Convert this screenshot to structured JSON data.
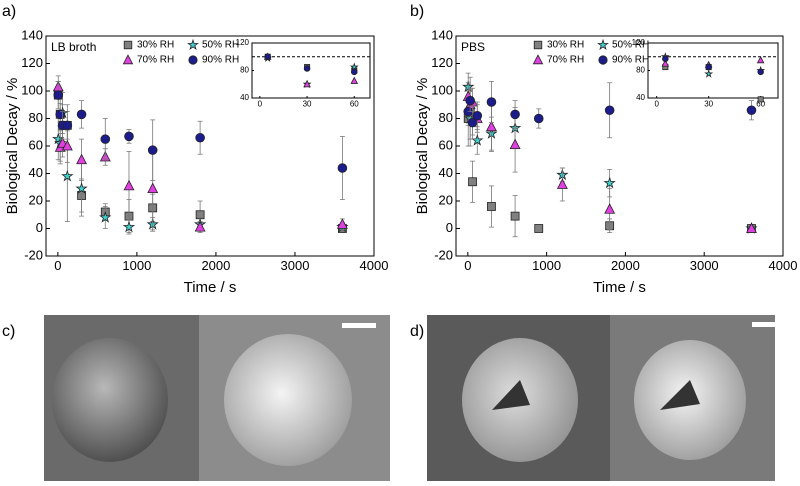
{
  "chart_data": [
    {
      "type": "scatter",
      "panel_label": "a)",
      "annotation": "LB broth",
      "xlabel": "Time / s",
      "ylabel": "Biological Decay / %",
      "xlim": [
        -150,
        4000
      ],
      "ylim": [
        -20,
        140
      ],
      "xticks": [
        0,
        1000,
        2000,
        3000,
        4000
      ],
      "yticks": [
        -20,
        0,
        20,
        40,
        60,
        80,
        100,
        120,
        140
      ],
      "x": [
        5,
        30,
        60,
        120,
        300,
        600,
        900,
        1200,
        1800,
        3600
      ],
      "series": [
        {
          "name": "30% RH",
          "color": "#808080",
          "marker": "square",
          "values": [
            97,
            83,
            75,
            75,
            24,
            12,
            9,
            15,
            10,
            0
          ],
          "errors": [
            10,
            12,
            15,
            15,
            12,
            6,
            12,
            10,
            10,
            2
          ]
        },
        {
          "name": "50% RH",
          "color": "#40d0d0",
          "marker": "star",
          "values": [
            65,
            62,
            84,
            38,
            29,
            8,
            1,
            3,
            3,
            1
          ],
          "errors": [
            15,
            15,
            15,
            33,
            20,
            8,
            5,
            5,
            5,
            3
          ]
        },
        {
          "name": "70% RH",
          "color": "#e040e0",
          "marker": "triangle",
          "values": [
            103,
            59,
            62,
            60,
            50,
            52,
            31,
            29,
            1,
            3
          ],
          "errors": [
            8,
            10,
            10,
            12,
            15,
            6,
            25,
            30,
            4,
            4
          ]
        },
        {
          "name": "90% RH",
          "color": "#1c1c8a",
          "marker": "circle",
          "values": [
            97,
            83,
            75,
            75,
            83,
            65,
            67,
            57,
            66,
            44
          ],
          "errors": [
            10,
            8,
            10,
            10,
            10,
            15,
            5,
            22,
            12,
            23
          ]
        }
      ]
    },
    {
      "type": "scatter",
      "xlim": [
        -5,
        70
      ],
      "ylim": [
        40,
        120
      ],
      "xticks": [
        0,
        30,
        60
      ],
      "yticks": [
        40,
        80,
        120
      ],
      "ref_line": 100,
      "x": [
        5,
        30,
        60
      ],
      "series": [
        {
          "name": "30% RH",
          "color": "#808080",
          "marker": "square",
          "values": [
            100,
            85,
            80
          ]
        },
        {
          "name": "50% RH",
          "color": "#40d0d0",
          "marker": "star",
          "values": [
            98,
            60,
            85
          ]
        },
        {
          "name": "70% RH",
          "color": "#e040e0",
          "marker": "triangle",
          "values": [
            100,
            60,
            65
          ]
        },
        {
          "name": "90% RH",
          "color": "#1c1c8a",
          "marker": "circle",
          "values": [
            100,
            83,
            78
          ]
        }
      ]
    },
    {
      "type": "scatter",
      "panel_label": "b)",
      "annotation": "PBS",
      "xlabel": "Time / s",
      "ylabel": "Biological Decay / %",
      "xlim": [
        -150,
        4000
      ],
      "ylim": [
        -20,
        140
      ],
      "xticks": [
        0,
        1000,
        2000,
        3000,
        4000
      ],
      "yticks": [
        -20,
        0,
        20,
        40,
        60,
        80,
        100,
        120,
        140
      ],
      "x": [
        5,
        30,
        60,
        120,
        300,
        600,
        900,
        1200,
        1800,
        3600
      ],
      "series": [
        {
          "name": "30% RH",
          "color": "#808080",
          "marker": "square",
          "values": [
            80,
            85,
            34,
            null,
            16,
            9,
            0,
            null,
            2,
            0
          ],
          "errors": [
            20,
            25,
            15,
            null,
            15,
            15,
            1,
            null,
            5,
            1
          ]
        },
        {
          "name": "50% RH",
          "color": "#40d0d0",
          "marker": "star",
          "values": [
            103,
            80,
            78,
            64,
            69,
            73,
            null,
            39,
            33,
            0
          ],
          "errors": [
            10,
            15,
            10,
            10,
            12,
            15,
            null,
            5,
            10,
            1
          ]
        },
        {
          "name": "70% RH",
          "color": "#e040e0",
          "marker": "triangle",
          "values": [
            96,
            90,
            92,
            80,
            74,
            61,
            null,
            32,
            14,
            0
          ],
          "errors": [
            10,
            12,
            10,
            10,
            18,
            20,
            null,
            12,
            15,
            1
          ]
        },
        {
          "name": "90% RH",
          "color": "#1c1c8a",
          "marker": "circle",
          "values": [
            85,
            93,
            77,
            82,
            92,
            83,
            80,
            null,
            86,
            86
          ],
          "errors": [
            10,
            8,
            12,
            10,
            15,
            10,
            7,
            null,
            20,
            7
          ]
        }
      ]
    },
    {
      "type": "scatter",
      "xlim": [
        -5,
        70
      ],
      "ylim": [
        40,
        120
      ],
      "xticks": [
        0,
        30,
        60
      ],
      "yticks": [
        40,
        80,
        120
      ],
      "ref_line": 100,
      "x": [
        5,
        30,
        60
      ],
      "series": [
        {
          "name": "30% RH",
          "color": "#808080",
          "marker": "square",
          "values": [
            85,
            85,
            38
          ]
        },
        {
          "name": "50% RH",
          "color": "#40d0d0",
          "marker": "star",
          "values": [
            100,
            75,
            80
          ]
        },
        {
          "name": "70% RH",
          "color": "#e040e0",
          "marker": "triangle",
          "values": [
            90,
            88,
            95
          ]
        },
        {
          "name": "90% RH",
          "color": "#1c1c8a",
          "marker": "circle",
          "values": [
            97,
            85,
            78
          ]
        }
      ]
    }
  ],
  "images": [
    {
      "label": "c)"
    },
    {
      "label": "d)"
    }
  ]
}
